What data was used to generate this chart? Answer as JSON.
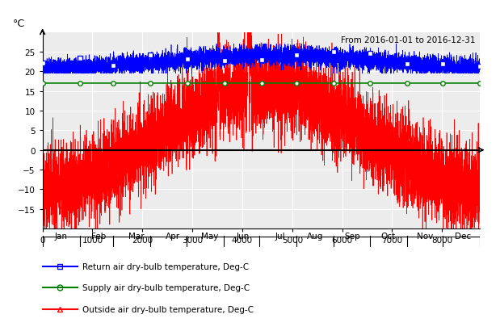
{
  "title_annotation": "From 2016-01-01 to 2016-12-31",
  "ylabel": "°C",
  "xlim": [
    0,
    8760
  ],
  "ylim": [
    -20,
    30
  ],
  "yticks": [
    -15,
    -10,
    -5,
    0,
    5,
    10,
    15,
    20,
    25
  ],
  "xticks_numeric": [
    0,
    1000,
    2000,
    3000,
    4000,
    5000,
    6000,
    7000,
    8000
  ],
  "month_labels": [
    "Jan",
    "Feb",
    "Mar",
    "Apr",
    "May",
    "Jun",
    "Jul",
    "Aug",
    "Sep",
    "Oct",
    "Nov",
    "Dec"
  ],
  "month_positions": [
    372,
    1128,
    1872,
    2604,
    3348,
    4020,
    4764,
    5460,
    6204,
    6924,
    7656,
    8418
  ],
  "month_tick_positions": [
    0,
    744,
    1416,
    2160,
    2880,
    3624,
    4344,
    5088,
    5832,
    6552,
    7296,
    8016,
    8760
  ],
  "supply_air_value": 17.0,
  "supply_air_marker_positions": [
    0,
    744,
    1416,
    2160,
    2904,
    3648,
    4392,
    5088,
    5832,
    6552,
    7296,
    8016,
    8759
  ],
  "return_air_marker_positions": [
    0,
    744,
    1416,
    2160,
    2904,
    3648,
    4392,
    5088,
    5832,
    6552,
    7296,
    8016,
    8759
  ],
  "legend_entries": [
    {
      "label": "Return air dry-bulb temperature, Deg-C",
      "color": "blue",
      "marker": "s"
    },
    {
      "label": "Supply air dry-bulb temperature, Deg-C",
      "color": "green",
      "marker": "o"
    },
    {
      "label": "Outside air dry-bulb temperature, Deg-C",
      "color": "red",
      "marker": "^"
    }
  ],
  "plot_bg_color": "#ececec",
  "grid_color": "white",
  "seed": 42,
  "outside_base_mean": 3.0,
  "outside_amplitude": 13.0,
  "outside_noise_std": 4.5,
  "return_base": 22.5,
  "return_amplitude": 1.5,
  "return_noise_std": 1.2
}
